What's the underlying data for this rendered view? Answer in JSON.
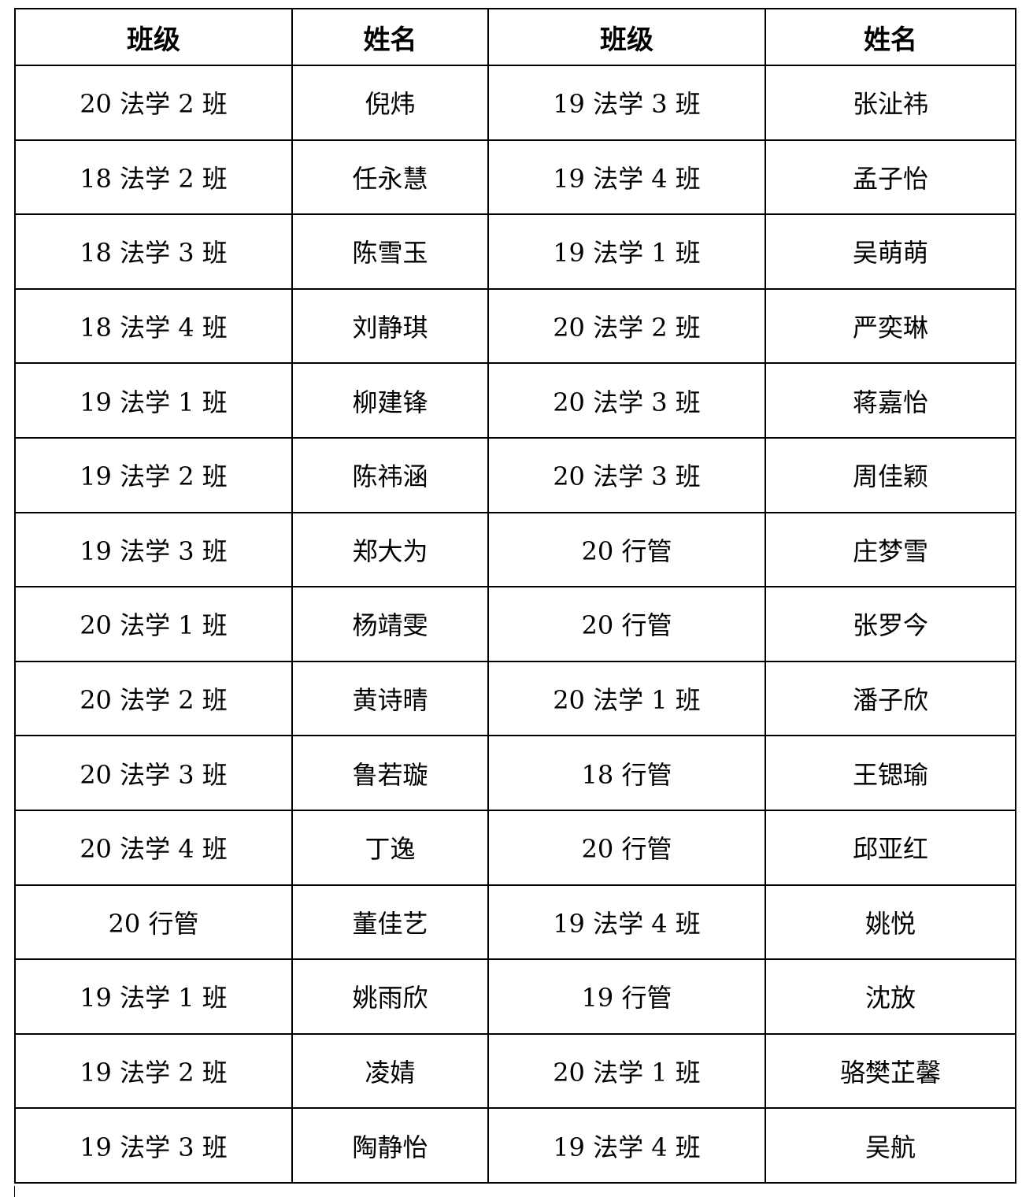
{
  "table": {
    "headers": [
      "班级",
      "姓名",
      "班级",
      "姓名"
    ],
    "rows": [
      [
        "20 法学 2 班",
        "倪炜",
        "19 法学 3 班",
        "张沚祎"
      ],
      [
        "18 法学 2 班",
        "任永慧",
        "19 法学 4 班",
        "孟子怡"
      ],
      [
        "18 法学 3 班",
        "陈雪玉",
        "19 法学 1 班",
        "吴萌萌"
      ],
      [
        "18 法学 4 班",
        "刘静琪",
        "20 法学 2 班",
        "严奕琳"
      ],
      [
        "19 法学 1 班",
        "柳建锋",
        "20 法学 3 班",
        "蒋嘉怡"
      ],
      [
        "19 法学 2 班",
        "陈祎涵",
        "20 法学 3 班",
        "周佳颖"
      ],
      [
        "19 法学 3 班",
        "郑大为",
        "20 行管",
        "庄梦雪"
      ],
      [
        "20 法学 1 班",
        "杨靖雯",
        "20 行管",
        "张罗今"
      ],
      [
        "20 法学 2 班",
        "黄诗晴",
        "20 法学 1 班",
        "潘子欣"
      ],
      [
        "20 法学 3 班",
        "鲁若璇",
        "18 行管",
        "王锶瑜"
      ],
      [
        "20 法学 4 班",
        "丁逸",
        "20 行管",
        "邱亚红"
      ],
      [
        "20 行管",
        "董佳艺",
        "19 法学 4 班",
        "姚悦"
      ],
      [
        "19 法学 1 班",
        "姚雨欣",
        "19 行管",
        "沈放"
      ],
      [
        "19 法学 2 班",
        "凌婧",
        "20 法学 1 班",
        "骆樊芷馨"
      ],
      [
        "19 法学 3 班",
        "陶静怡",
        "19 法学 4 班",
        "吴航"
      ]
    ]
  }
}
